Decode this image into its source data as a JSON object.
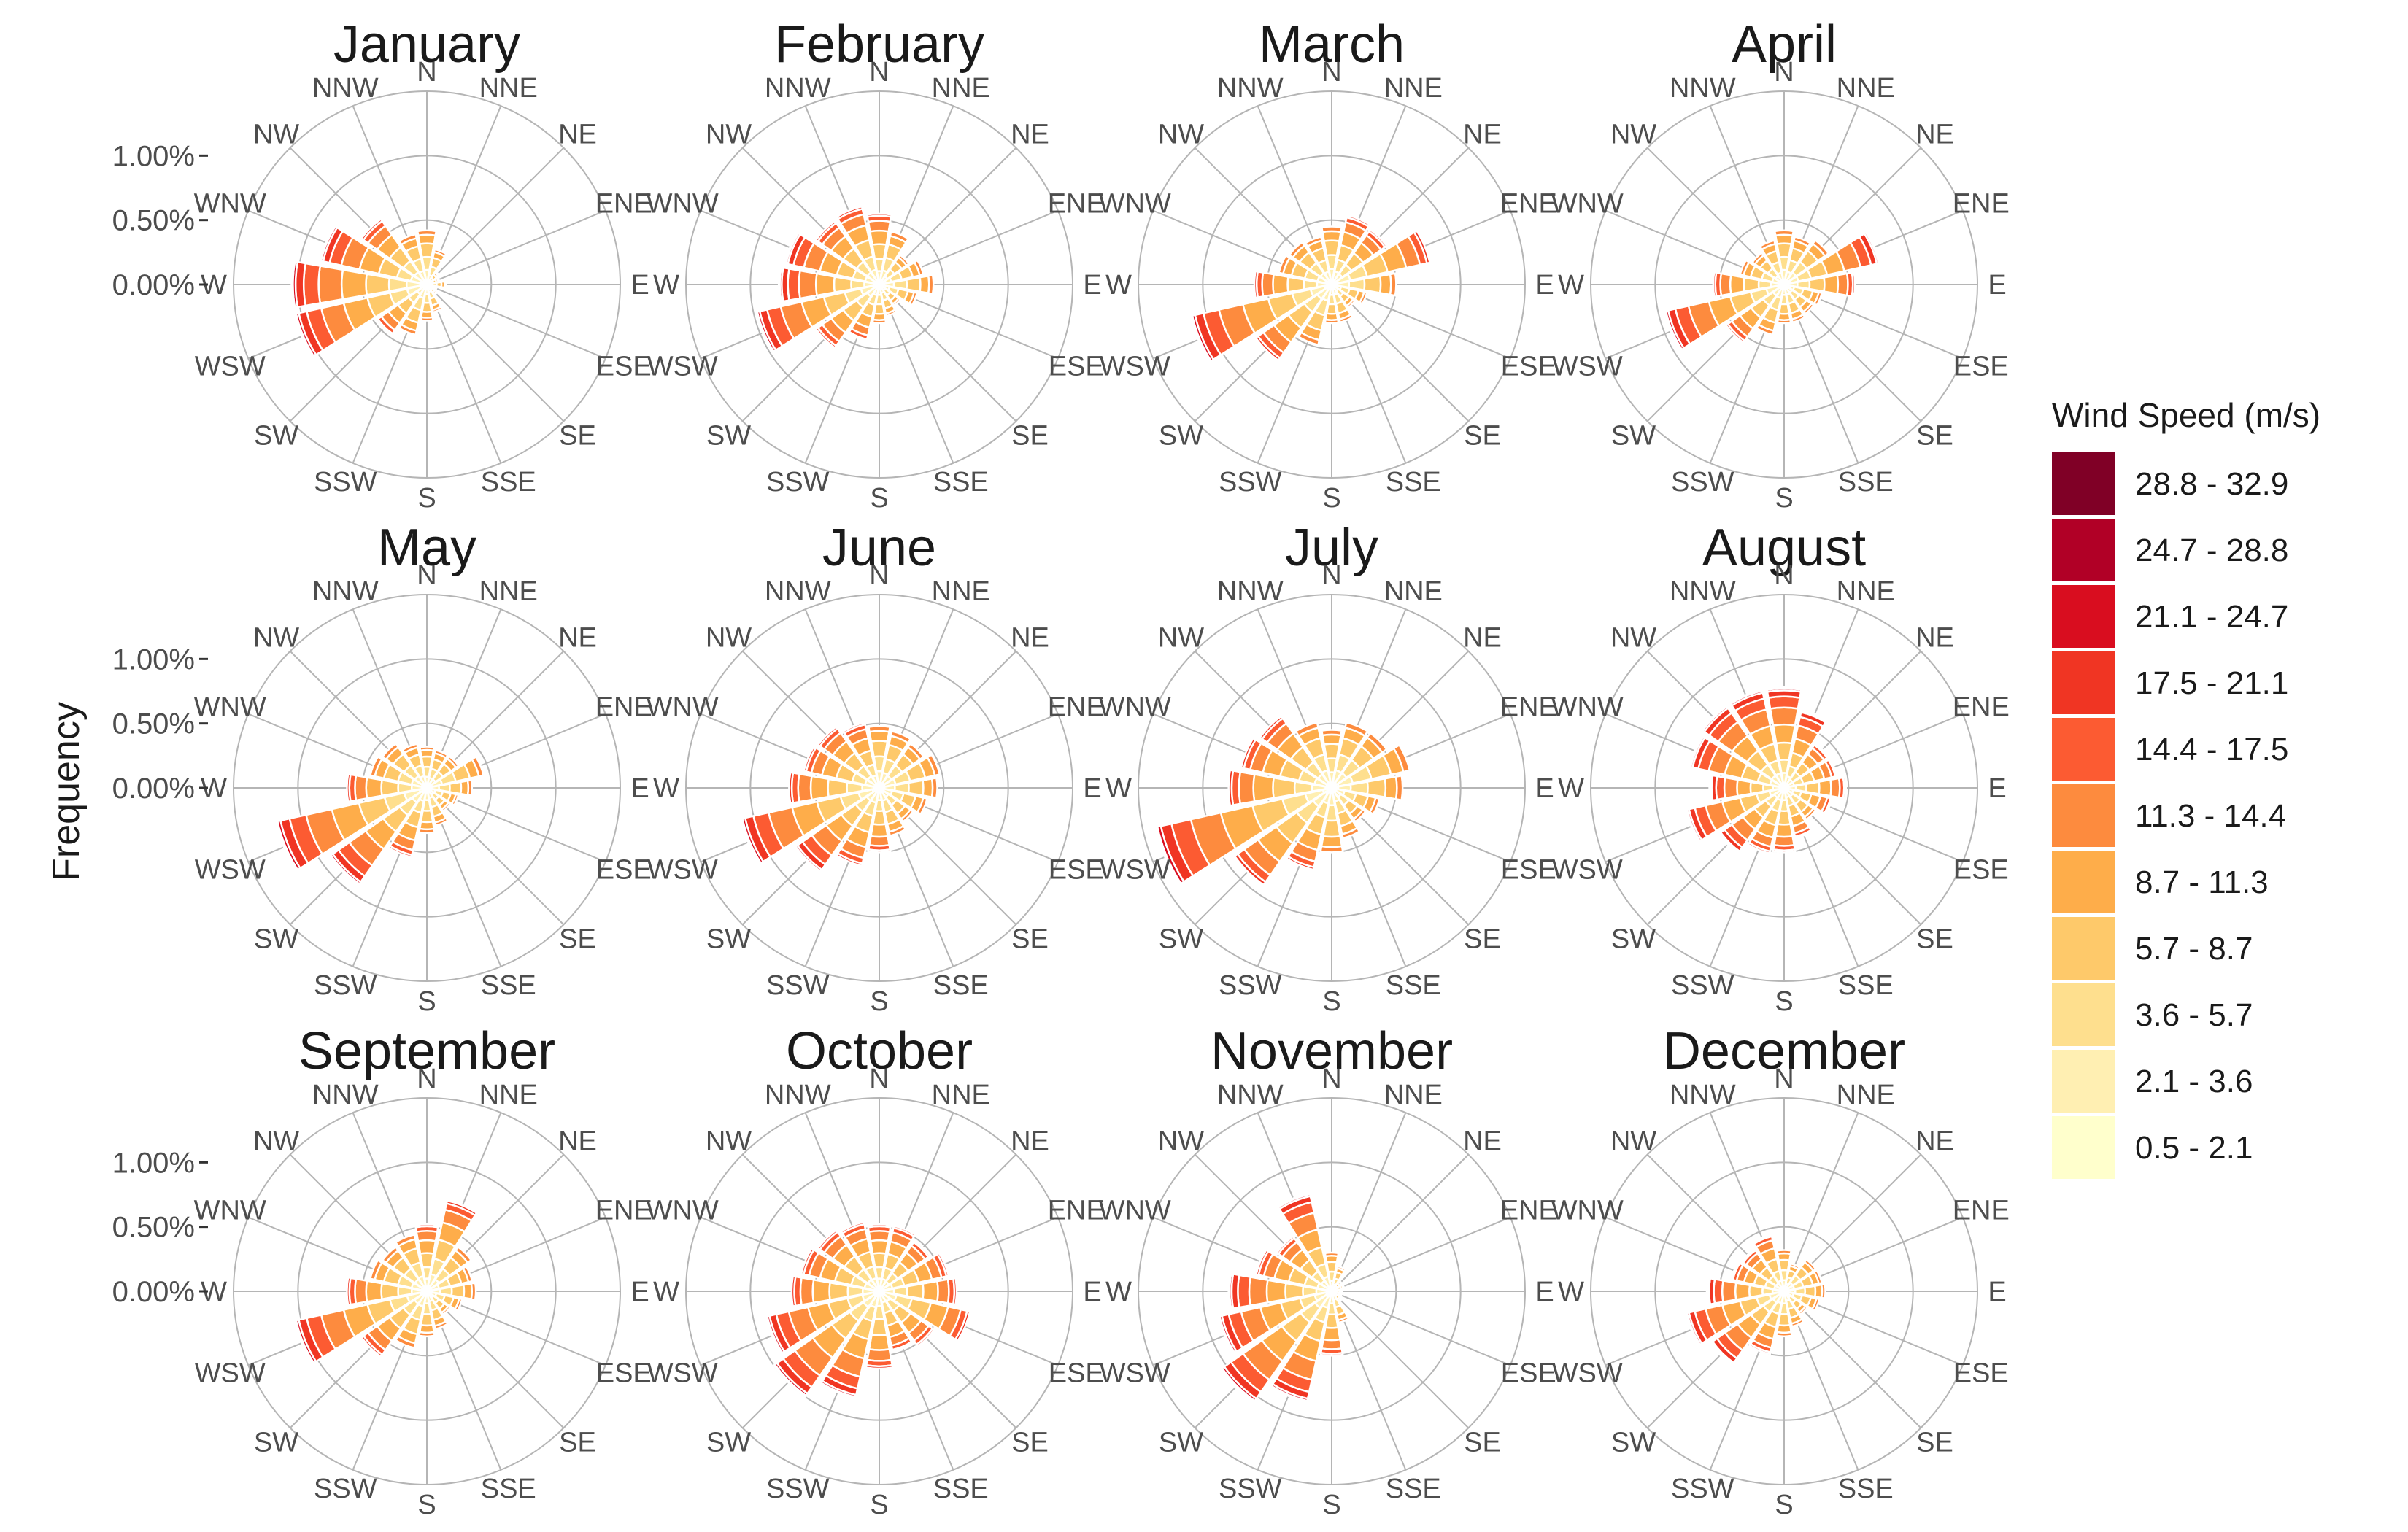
{
  "chart_data": {
    "type": "polar-stacked-bar",
    "title": "",
    "ylabel": "Frequency",
    "r_ticks": [
      "0.00%",
      "0.50%",
      "1.00%"
    ],
    "r_tick_values": [
      0,
      0.5,
      1.0
    ],
    "r_max": 1.5,
    "directions": [
      "N",
      "NNE",
      "NE",
      "ENE",
      "E",
      "ESE",
      "SE",
      "SSE",
      "S",
      "SSW",
      "SW",
      "WSW",
      "W",
      "WNW",
      "NW",
      "NNW"
    ],
    "legend": {
      "title": "Wind Speed (m/s)",
      "bins": [
        {
          "label": "28.8 - 32.9",
          "color": "#800026"
        },
        {
          "label": "24.7 - 28.8",
          "color": "#b10026"
        },
        {
          "label": "21.1 - 24.7",
          "color": "#d90d1f"
        },
        {
          "label": "17.5 - 21.1",
          "color": "#f03523"
        },
        {
          "label": "14.4 - 17.5",
          "color": "#fc5b32"
        },
        {
          "label": "11.3 - 14.4",
          "color": "#fd8b3e"
        },
        {
          "label": "8.7 - 11.3",
          "color": "#fead4a"
        },
        {
          "label": "5.7 - 8.7",
          "color": "#fec96a"
        },
        {
          "label": "3.6 - 5.7",
          "color": "#fedf8e"
        },
        {
          "label": "2.1 - 3.6",
          "color": "#ffefb2"
        },
        {
          "label": "0.5 - 2.1",
          "color": "#ffffcc"
        }
      ]
    },
    "panels": [
      {
        "month": "January",
        "totals": [
          0.42,
          0.28,
          0.12,
          0.1,
          0.15,
          0.08,
          0.1,
          0.22,
          0.28,
          0.4,
          0.48,
          1.05,
          1.05,
          0.85,
          0.62,
          0.4
        ]
      },
      {
        "month": "February",
        "totals": [
          0.55,
          0.42,
          0.28,
          0.35,
          0.42,
          0.3,
          0.2,
          0.25,
          0.3,
          0.45,
          0.6,
          0.98,
          0.78,
          0.75,
          0.6,
          0.62
        ]
      },
      {
        "month": "March",
        "totals": [
          0.45,
          0.55,
          0.52,
          0.78,
          0.5,
          0.28,
          0.22,
          0.3,
          0.3,
          0.48,
          0.72,
          1.12,
          0.6,
          0.42,
          0.4,
          0.38
        ]
      },
      {
        "month": "April",
        "totals": [
          0.42,
          0.38,
          0.42,
          0.76,
          0.55,
          0.3,
          0.28,
          0.3,
          0.3,
          0.4,
          0.55,
          0.95,
          0.55,
          0.35,
          0.3,
          0.35
        ]
      },
      {
        "month": "May",
        "totals": [
          0.32,
          0.3,
          0.3,
          0.45,
          0.35,
          0.25,
          0.22,
          0.3,
          0.35,
          0.55,
          0.92,
          1.2,
          0.62,
          0.45,
          0.42,
          0.35
        ]
      },
      {
        "month": "June",
        "totals": [
          0.48,
          0.45,
          0.42,
          0.48,
          0.45,
          0.38,
          0.32,
          0.38,
          0.5,
          0.62,
          0.8,
          1.1,
          0.7,
          0.6,
          0.58,
          0.52
        ]
      },
      {
        "month": "July",
        "totals": [
          0.45,
          0.52,
          0.52,
          0.62,
          0.55,
          0.38,
          0.32,
          0.4,
          0.5,
          0.65,
          0.92,
          1.4,
          0.8,
          0.72,
          0.68,
          0.52
        ]
      },
      {
        "month": "August",
        "totals": [
          0.78,
          0.62,
          0.42,
          0.42,
          0.48,
          0.38,
          0.3,
          0.4,
          0.5,
          0.52,
          0.62,
          0.78,
          0.58,
          0.75,
          0.78,
          0.78
        ]
      },
      {
        "month": "September",
        "totals": [
          0.52,
          0.72,
          0.42,
          0.36,
          0.38,
          0.28,
          0.22,
          0.3,
          0.35,
          0.45,
          0.62,
          1.05,
          0.62,
          0.45,
          0.42,
          0.45
        ]
      },
      {
        "month": "October",
        "totals": [
          0.52,
          0.52,
          0.48,
          0.55,
          0.6,
          0.72,
          0.52,
          0.48,
          0.6,
          0.85,
          1.0,
          0.9,
          0.68,
          0.62,
          0.58,
          0.55
        ]
      },
      {
        "month": "November",
        "totals": [
          0.3,
          0.2,
          0.1,
          0.1,
          0.08,
          0.08,
          0.1,
          0.25,
          0.5,
          0.88,
          1.05,
          0.9,
          0.8,
          0.6,
          0.52,
          0.78
        ]
      },
      {
        "month": "December",
        "totals": [
          0.32,
          0.22,
          0.3,
          0.3,
          0.32,
          0.28,
          0.22,
          0.28,
          0.35,
          0.5,
          0.7,
          0.78,
          0.6,
          0.42,
          0.4,
          0.45
        ]
      }
    ]
  }
}
